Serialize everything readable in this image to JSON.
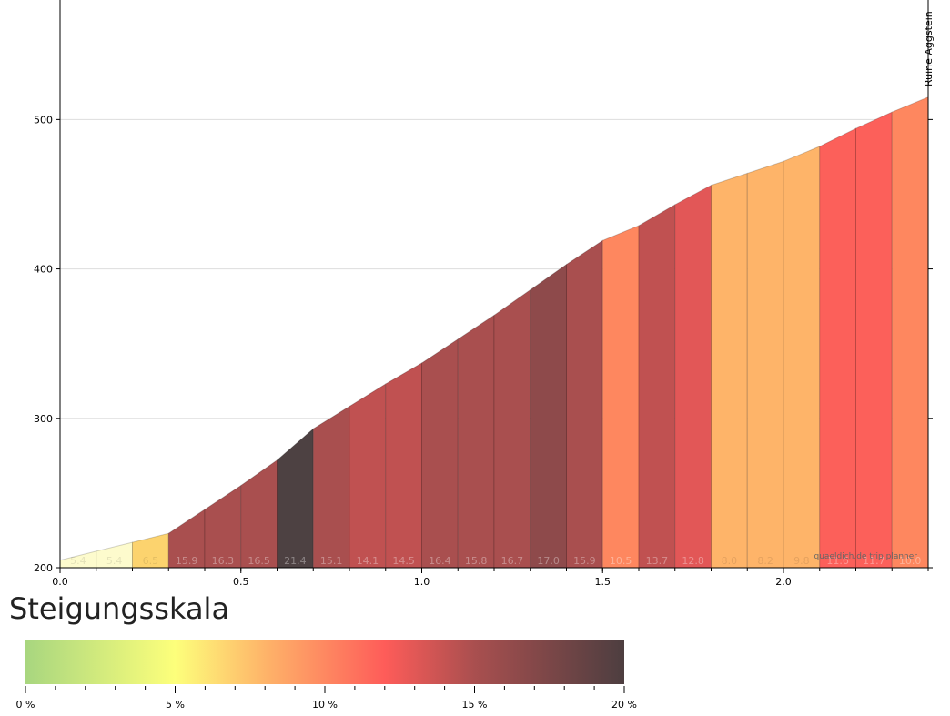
{
  "chart_data": {
    "type": "area",
    "xlim": [
      0,
      2.4
    ],
    "ylim": [
      200,
      580
    ],
    "x_ticks": [
      0.0,
      0.5,
      1.0,
      1.5,
      2.0
    ],
    "x_tick_labels": [
      "0.0",
      "0.5",
      "1.0",
      "1.5",
      "2.0"
    ],
    "y_ticks": [
      200,
      300,
      400,
      500
    ],
    "y_tick_labels": [
      "200",
      "300",
      "400",
      "500"
    ],
    "grid": true,
    "segments": [
      {
        "x0": 0.0,
        "x1": 0.1,
        "y0": 205,
        "y1": 211,
        "grade": 5.4,
        "label": "5.4"
      },
      {
        "x0": 0.1,
        "x1": 0.2,
        "y0": 211,
        "y1": 217,
        "grade": 5.4,
        "label": "5.4"
      },
      {
        "x0": 0.2,
        "x1": 0.3,
        "y0": 217,
        "y1": 223,
        "grade": 6.5,
        "label": "6.5"
      },
      {
        "x0": 0.3,
        "x1": 0.4,
        "y0": 223,
        "y1": 239,
        "grade": 15.9,
        "label": "15.9"
      },
      {
        "x0": 0.4,
        "x1": 0.5,
        "y0": 239,
        "y1": 255,
        "grade": 16.3,
        "label": "16.3"
      },
      {
        "x0": 0.5,
        "x1": 0.6,
        "y0": 255,
        "y1": 272,
        "grade": 16.5,
        "label": "16.5"
      },
      {
        "x0": 0.6,
        "x1": 0.7,
        "y0": 272,
        "y1": 293,
        "grade": 21.4,
        "label": "21.4"
      },
      {
        "x0": 0.7,
        "x1": 0.8,
        "y0": 293,
        "y1": 308,
        "grade": 15.1,
        "label": "15.1"
      },
      {
        "x0": 0.8,
        "x1": 0.9,
        "y0": 308,
        "y1": 323,
        "grade": 14.1,
        "label": "14.1"
      },
      {
        "x0": 0.9,
        "x1": 1.0,
        "y0": 323,
        "y1": 337,
        "grade": 14.5,
        "label": "14.5"
      },
      {
        "x0": 1.0,
        "x1": 1.1,
        "y0": 337,
        "y1": 353,
        "grade": 16.4,
        "label": "16.4"
      },
      {
        "x0": 1.1,
        "x1": 1.2,
        "y0": 353,
        "y1": 369,
        "grade": 15.8,
        "label": "15.8"
      },
      {
        "x0": 1.2,
        "x1": 1.3,
        "y0": 369,
        "y1": 386,
        "grade": 16.7,
        "label": "16.7"
      },
      {
        "x0": 1.3,
        "x1": 1.4,
        "y0": 386,
        "y1": 403,
        "grade": 17.0,
        "label": "17.0"
      },
      {
        "x0": 1.4,
        "x1": 1.5,
        "y0": 403,
        "y1": 419,
        "grade": 15.9,
        "label": "15.9"
      },
      {
        "x0": 1.5,
        "x1": 1.6,
        "y0": 419,
        "y1": 429,
        "grade": 10.5,
        "label": "10.5"
      },
      {
        "x0": 1.6,
        "x1": 1.7,
        "y0": 429,
        "y1": 443,
        "grade": 13.7,
        "label": "13.7"
      },
      {
        "x0": 1.7,
        "x1": 1.8,
        "y0": 443,
        "y1": 456,
        "grade": 12.8,
        "label": "12.8"
      },
      {
        "x0": 1.8,
        "x1": 1.9,
        "y0": 456,
        "y1": 464,
        "grade": 8.0,
        "label": "8.0"
      },
      {
        "x0": 1.9,
        "x1": 2.0,
        "y0": 464,
        "y1": 472,
        "grade": 8.2,
        "label": "8.2"
      },
      {
        "x0": 2.0,
        "x1": 2.1,
        "y0": 472,
        "y1": 482,
        "grade": 9.8,
        "label": "9.8"
      },
      {
        "x0": 2.1,
        "x1": 2.2,
        "y0": 482,
        "y1": 494,
        "grade": 11.6,
        "label": "11.6"
      },
      {
        "x0": 2.2,
        "x1": 2.3,
        "y0": 494,
        "y1": 505,
        "grade": 11.7,
        "label": "11.7"
      },
      {
        "x0": 2.3,
        "x1": 2.4,
        "y0": 505,
        "y1": 515,
        "grade": 10.0,
        "label": "10.0"
      }
    ],
    "annotations": [
      {
        "text": "Ruine Aggstein",
        "x": 2.4
      },
      {
        "text": "quaeldich.de trip planner"
      }
    ]
  },
  "legend": {
    "title": "Steigungsskala",
    "min": 0,
    "max": 20,
    "stops": [
      {
        "value": 0,
        "color": "#a8d67f"
      },
      {
        "value": 5,
        "color": "#fdff7b"
      },
      {
        "value": 8,
        "color": "#feb469"
      },
      {
        "value": 12,
        "color": "#fe5c59"
      },
      {
        "value": 15,
        "color": "#a94f4f"
      },
      {
        "value": 20,
        "color": "#4d3e40"
      }
    ],
    "labels": [
      {
        "value": 0,
        "text": "0 %"
      },
      {
        "value": 5,
        "text": "5 %"
      },
      {
        "value": 10,
        "text": "10 %"
      },
      {
        "value": 15,
        "text": "15 %"
      },
      {
        "value": 20,
        "text": "20 %"
      }
    ]
  },
  "colors": {
    "grade_0_6": "#fdfbcd",
    "grade_6_8": "#fcd36e",
    "grade_8_10": "#feb469",
    "grade_10_11": "#fe875f",
    "grade_11_12": "#fc605a",
    "grade_12_13": "#e25757",
    "grade_13_15": "#c05151",
    "grade_15_17": "#a94f4f",
    "grade_17_20": "#8e4a4b",
    "grade_20_plus": "#4d4142"
  }
}
